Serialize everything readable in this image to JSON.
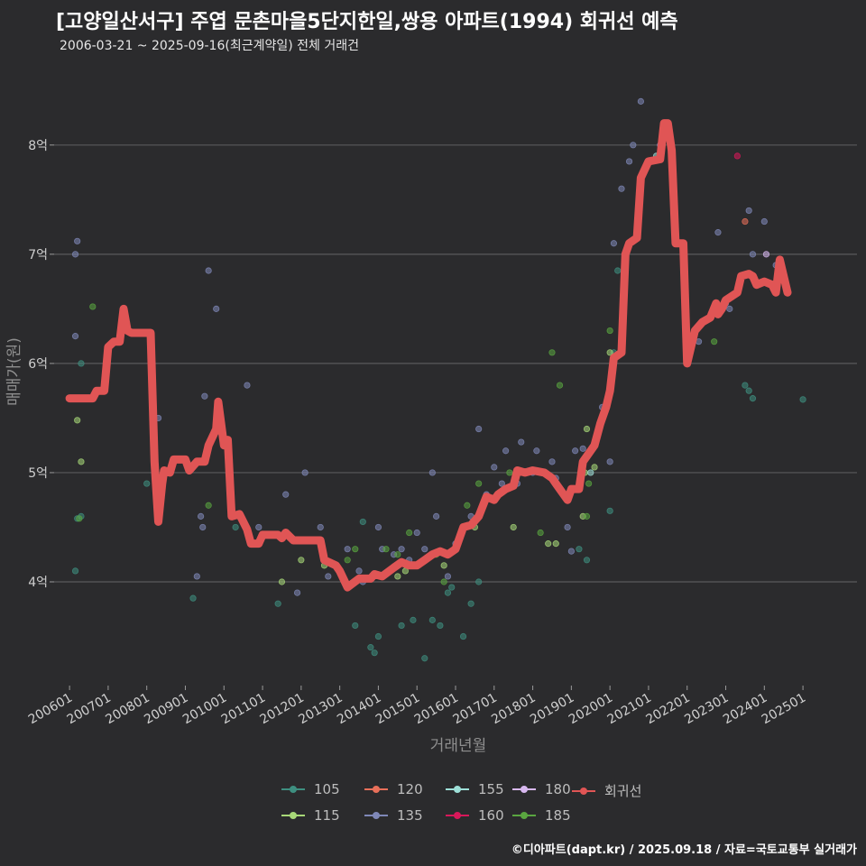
{
  "title": "[고양일산서구] 주엽 문촌마을5단지한일,쌍용 아파트(1994) 회귀선 예측",
  "subtitle": "2006-03-21 ~ 2025-09-16(최근계약일) 전체 거래건",
  "source": "©디아파트(dapt.kr) / 2025.09.18 / 자료=국토교통부 실거래가",
  "colors": {
    "background": "#2b2b2d",
    "grid": "#5a5a5c",
    "regression": "#e05555",
    "s105": "#3e8f80",
    "s115": "#a8d878",
    "s120": "#e8705a",
    "s135": "#7f88b8",
    "s155": "#9ee0d8",
    "s160": "#d8185a",
    "s180": "#d8b8f0",
    "s185": "#5aa640",
    "regression_key": "#e05555"
  },
  "legend": {
    "items": [
      {
        "label": "105",
        "color_key": "s105"
      },
      {
        "label": "120",
        "color_key": "s120"
      },
      {
        "label": "155",
        "color_key": "s155"
      },
      {
        "label": "180",
        "color_key": "s180"
      },
      {
        "label": "회귀선",
        "color_key": "regression_key"
      },
      {
        "label": "115",
        "color_key": "s115"
      },
      {
        "label": "135",
        "color_key": "s135"
      },
      {
        "label": "160",
        "color_key": "s160"
      },
      {
        "label": "185",
        "color_key": "s185"
      }
    ]
  },
  "chart_data": {
    "type": "scatter",
    "title": "[고양일산서구] 주엽 문촌마을5단지한일,쌍용 아파트(1994) 회귀선 예측",
    "xlabel": "거래년월",
    "ylabel": "매매가(원)",
    "x_unit": "years",
    "xlim": [
      2005.6,
      2026.4
    ],
    "ylim": [
      3.05,
      8.75
    ],
    "y_ticks": [
      4,
      5,
      6,
      7,
      8
    ],
    "y_tick_labels": [
      "4억",
      "5억",
      "6억",
      "7억",
      "8억"
    ],
    "x_ticks": [
      2006,
      2007,
      2008,
      2009,
      2010,
      2011,
      2012,
      2013,
      2014,
      2015,
      2016,
      2017,
      2018,
      2019,
      2020,
      2021,
      2022,
      2023,
      2024,
      2025
    ],
    "x_tick_labels": [
      "200601",
      "200701",
      "200801",
      "200901",
      "201001",
      "201101",
      "201201",
      "201301",
      "201401",
      "201501",
      "201601",
      "201701",
      "201801",
      "201901",
      "202001",
      "202101",
      "202201",
      "202301",
      "202401",
      "202501"
    ],
    "grid": true,
    "legend_position": "bottom",
    "regression": [
      [
        2006.0,
        5.68
      ],
      [
        2006.6,
        5.68
      ],
      [
        2006.7,
        5.75
      ],
      [
        2006.9,
        5.75
      ],
      [
        2007.0,
        6.15
      ],
      [
        2007.15,
        6.2
      ],
      [
        2007.3,
        6.2
      ],
      [
        2007.4,
        6.5
      ],
      [
        2007.5,
        6.3
      ],
      [
        2007.6,
        6.28
      ],
      [
        2008.1,
        6.28
      ],
      [
        2008.2,
        5.1
      ],
      [
        2008.3,
        4.55
      ],
      [
        2008.4,
        4.9
      ],
      [
        2008.45,
        5.02
      ],
      [
        2008.6,
        5.0
      ],
      [
        2008.7,
        5.12
      ],
      [
        2009.0,
        5.12
      ],
      [
        2009.1,
        5.02
      ],
      [
        2009.3,
        5.1
      ],
      [
        2009.5,
        5.1
      ],
      [
        2009.6,
        5.25
      ],
      [
        2009.8,
        5.4
      ],
      [
        2009.85,
        5.65
      ],
      [
        2010.0,
        5.25
      ],
      [
        2010.1,
        5.3
      ],
      [
        2010.2,
        4.6
      ],
      [
        2010.4,
        4.62
      ],
      [
        2010.6,
        4.48
      ],
      [
        2010.7,
        4.35
      ],
      [
        2010.9,
        4.35
      ],
      [
        2011.0,
        4.43
      ],
      [
        2011.4,
        4.43
      ],
      [
        2011.5,
        4.4
      ],
      [
        2011.6,
        4.45
      ],
      [
        2011.8,
        4.38
      ],
      [
        2012.5,
        4.38
      ],
      [
        2012.6,
        4.2
      ],
      [
        2012.9,
        4.15
      ],
      [
        2013.0,
        4.1
      ],
      [
        2013.2,
        3.95
      ],
      [
        2013.5,
        4.03
      ],
      [
        2013.8,
        4.03
      ],
      [
        2013.9,
        4.07
      ],
      [
        2014.1,
        4.05
      ],
      [
        2014.4,
        4.13
      ],
      [
        2014.6,
        4.18
      ],
      [
        2014.8,
        4.15
      ],
      [
        2015.0,
        4.15
      ],
      [
        2015.2,
        4.2
      ],
      [
        2015.4,
        4.25
      ],
      [
        2015.6,
        4.28
      ],
      [
        2015.8,
        4.25
      ],
      [
        2016.0,
        4.3
      ],
      [
        2016.1,
        4.4
      ],
      [
        2016.2,
        4.5
      ],
      [
        2016.4,
        4.52
      ],
      [
        2016.6,
        4.6
      ],
      [
        2016.8,
        4.78
      ],
      [
        2017.0,
        4.75
      ],
      [
        2017.1,
        4.8
      ],
      [
        2017.3,
        4.85
      ],
      [
        2017.5,
        4.88
      ],
      [
        2017.6,
        5.02
      ],
      [
        2017.8,
        5.0
      ],
      [
        2018.0,
        5.02
      ],
      [
        2018.3,
        5.0
      ],
      [
        2018.5,
        4.95
      ],
      [
        2018.6,
        4.9
      ],
      [
        2018.7,
        4.85
      ],
      [
        2018.9,
        4.75
      ],
      [
        2019.0,
        4.85
      ],
      [
        2019.2,
        4.85
      ],
      [
        2019.3,
        5.1
      ],
      [
        2019.5,
        5.2
      ],
      [
        2019.6,
        5.25
      ],
      [
        2019.75,
        5.45
      ],
      [
        2019.9,
        5.6
      ],
      [
        2020.0,
        5.75
      ],
      [
        2020.1,
        6.05
      ],
      [
        2020.3,
        6.1
      ],
      [
        2020.4,
        7.0
      ],
      [
        2020.5,
        7.1
      ],
      [
        2020.7,
        7.15
      ],
      [
        2020.8,
        7.7
      ],
      [
        2021.0,
        7.85
      ],
      [
        2021.3,
        7.87
      ],
      [
        2021.4,
        8.2
      ],
      [
        2021.5,
        8.2
      ],
      [
        2021.6,
        7.95
      ],
      [
        2021.7,
        7.1
      ],
      [
        2021.9,
        7.1
      ],
      [
        2022.0,
        6.0
      ],
      [
        2022.2,
        6.3
      ],
      [
        2022.4,
        6.38
      ],
      [
        2022.6,
        6.42
      ],
      [
        2022.75,
        6.55
      ],
      [
        2022.8,
        6.45
      ],
      [
        2022.9,
        6.5
      ],
      [
        2023.0,
        6.58
      ],
      [
        2023.3,
        6.65
      ],
      [
        2023.4,
        6.8
      ],
      [
        2023.6,
        6.82
      ],
      [
        2023.7,
        6.8
      ],
      [
        2023.8,
        6.72
      ],
      [
        2024.0,
        6.75
      ],
      [
        2024.2,
        6.72
      ],
      [
        2024.3,
        6.65
      ],
      [
        2024.4,
        6.95
      ],
      [
        2024.6,
        6.65
      ]
    ],
    "series": [
      {
        "name": "105",
        "color_key": "s105",
        "points": [
          [
            2006.15,
            4.1
          ],
          [
            2006.2,
            4.58
          ],
          [
            2006.3,
            4.6
          ],
          [
            2008.0,
            4.9
          ],
          [
            2009.2,
            3.85
          ],
          [
            2010.3,
            4.5
          ],
          [
            2011.4,
            3.8
          ],
          [
            2013.4,
            3.6
          ],
          [
            2013.6,
            4.55
          ],
          [
            2013.8,
            3.4
          ],
          [
            2013.9,
            3.35
          ],
          [
            2014.0,
            3.5
          ],
          [
            2014.6,
            3.6
          ],
          [
            2014.9,
            3.65
          ],
          [
            2015.2,
            3.3
          ],
          [
            2015.4,
            3.65
          ],
          [
            2015.6,
            3.6
          ],
          [
            2015.8,
            3.9
          ],
          [
            2015.9,
            3.95
          ],
          [
            2016.2,
            3.5
          ],
          [
            2016.4,
            3.8
          ],
          [
            2016.6,
            4.0
          ],
          [
            2019.2,
            4.3
          ],
          [
            2019.4,
            4.2
          ],
          [
            2020.0,
            4.65
          ],
          [
            2020.1,
            6.1
          ],
          [
            2020.2,
            6.85
          ],
          [
            2023.5,
            5.8
          ],
          [
            2023.6,
            5.75
          ],
          [
            2023.7,
            5.68
          ],
          [
            2025.0,
            5.67
          ],
          [
            2006.3,
            6.0
          ]
        ]
      },
      {
        "name": "115",
        "color_key": "s115",
        "points": [
          [
            2006.2,
            5.48
          ],
          [
            2006.3,
            5.1
          ],
          [
            2011.5,
            4.0
          ],
          [
            2012.0,
            4.2
          ],
          [
            2012.6,
            4.15
          ],
          [
            2014.5,
            4.05
          ],
          [
            2014.7,
            4.1
          ],
          [
            2015.7,
            4.15
          ],
          [
            2016.5,
            4.5
          ],
          [
            2017.5,
            4.5
          ],
          [
            2018.4,
            4.35
          ],
          [
            2018.6,
            4.35
          ],
          [
            2019.3,
            4.6
          ],
          [
            2019.35,
            5.0
          ],
          [
            2019.4,
            5.4
          ],
          [
            2019.6,
            5.05
          ],
          [
            2020.0,
            6.1
          ]
        ]
      },
      {
        "name": "120",
        "color_key": "s120",
        "points": [
          [
            2023.5,
            7.3
          ]
        ]
      },
      {
        "name": "135",
        "color_key": "s135",
        "points": [
          [
            2006.15,
            7.0
          ],
          [
            2006.2,
            7.12
          ],
          [
            2006.15,
            6.25
          ],
          [
            2008.3,
            5.5
          ],
          [
            2009.3,
            4.05
          ],
          [
            2009.4,
            4.6
          ],
          [
            2009.45,
            4.5
          ],
          [
            2009.5,
            5.7
          ],
          [
            2009.6,
            6.85
          ],
          [
            2009.8,
            6.5
          ],
          [
            2010.6,
            5.8
          ],
          [
            2010.9,
            4.5
          ],
          [
            2011.6,
            4.8
          ],
          [
            2011.9,
            3.9
          ],
          [
            2012.1,
            5.0
          ],
          [
            2012.5,
            4.5
          ],
          [
            2012.7,
            4.05
          ],
          [
            2013.2,
            4.3
          ],
          [
            2013.5,
            4.1
          ],
          [
            2013.6,
            4.0
          ],
          [
            2014.0,
            4.5
          ],
          [
            2014.1,
            4.3
          ],
          [
            2014.4,
            4.25
          ],
          [
            2014.6,
            4.3
          ],
          [
            2014.8,
            4.2
          ],
          [
            2015.0,
            4.45
          ],
          [
            2015.2,
            4.3
          ],
          [
            2015.4,
            5.0
          ],
          [
            2015.5,
            4.6
          ],
          [
            2015.6,
            4.28
          ],
          [
            2015.8,
            4.05
          ],
          [
            2016.0,
            4.35
          ],
          [
            2016.1,
            4.4
          ],
          [
            2016.4,
            4.6
          ],
          [
            2016.6,
            5.4
          ],
          [
            2016.8,
            4.8
          ],
          [
            2017.0,
            5.05
          ],
          [
            2017.2,
            4.9
          ],
          [
            2017.3,
            5.2
          ],
          [
            2017.6,
            4.9
          ],
          [
            2017.7,
            5.28
          ],
          [
            2018.0,
            5.0
          ],
          [
            2018.1,
            5.2
          ],
          [
            2018.5,
            5.1
          ],
          [
            2018.6,
            4.95
          ],
          [
            2018.9,
            4.5
          ],
          [
            2019.0,
            4.28
          ],
          [
            2019.1,
            5.2
          ],
          [
            2019.3,
            5.22
          ],
          [
            2019.8,
            5.6
          ],
          [
            2020.0,
            5.1
          ],
          [
            2020.1,
            7.1
          ],
          [
            2020.3,
            7.6
          ],
          [
            2020.5,
            7.85
          ],
          [
            2020.6,
            8.0
          ],
          [
            2020.8,
            8.4
          ],
          [
            2021.3,
            8.0
          ],
          [
            2022.0,
            6.1
          ],
          [
            2022.3,
            6.2
          ],
          [
            2022.8,
            7.2
          ],
          [
            2023.0,
            6.55
          ],
          [
            2023.1,
            6.5
          ],
          [
            2023.6,
            7.4
          ],
          [
            2023.7,
            7.0
          ],
          [
            2024.0,
            7.3
          ],
          [
            2024.3,
            6.9
          ]
        ]
      },
      {
        "name": "155",
        "color_key": "s155",
        "points": [
          [
            2019.5,
            5.0
          ],
          [
            2021.2,
            7.9
          ]
        ]
      },
      {
        "name": "160",
        "color_key": "s160",
        "points": [
          [
            2023.3,
            7.9
          ]
        ]
      },
      {
        "name": "180",
        "color_key": "s180",
        "points": [
          [
            2024.05,
            7.0
          ]
        ]
      },
      {
        "name": "185",
        "color_key": "s185",
        "points": [
          [
            2006.6,
            6.52
          ],
          [
            2009.6,
            4.7
          ],
          [
            2013.2,
            4.2
          ],
          [
            2013.4,
            4.3
          ],
          [
            2014.2,
            4.3
          ],
          [
            2014.5,
            4.25
          ],
          [
            2014.8,
            4.45
          ],
          [
            2015.5,
            4.25
          ],
          [
            2015.7,
            4.0
          ],
          [
            2016.3,
            4.7
          ],
          [
            2016.6,
            4.9
          ],
          [
            2017.4,
            5.0
          ],
          [
            2018.2,
            4.45
          ],
          [
            2018.7,
            5.8
          ],
          [
            2018.5,
            6.1
          ],
          [
            2019.4,
            4.6
          ],
          [
            2019.45,
            4.9
          ],
          [
            2020.0,
            6.3
          ],
          [
            2022.7,
            6.2
          ],
          [
            2006.25,
            4.58
          ]
        ]
      }
    ]
  }
}
